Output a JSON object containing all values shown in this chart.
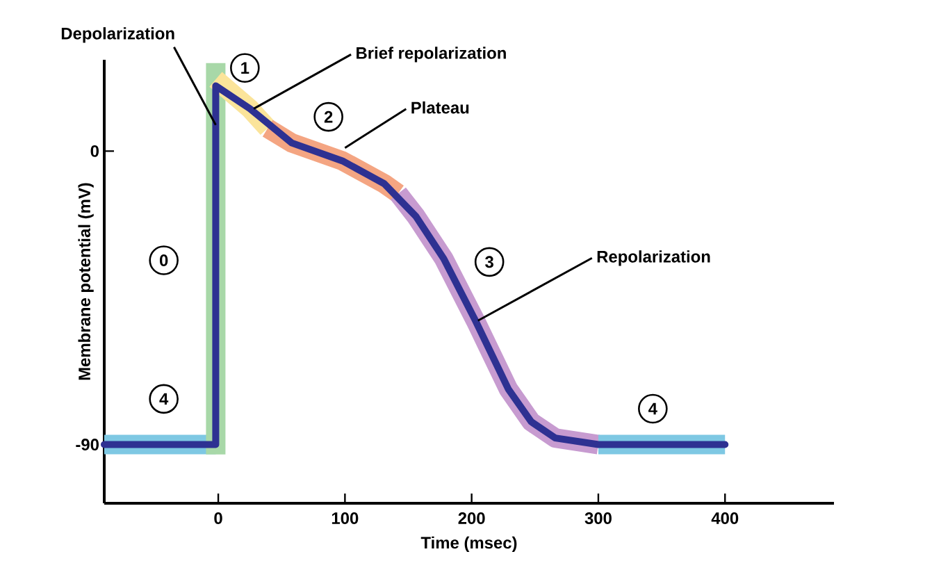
{
  "chart_data": {
    "type": "line",
    "xlabel": "Time (msec)",
    "ylabel": "Membrane potential (mV)",
    "xlim": [
      -90,
      486
    ],
    "ylim": [
      -108,
      28
    ],
    "xticks": [
      0,
      100,
      200,
      300,
      400
    ],
    "yticks": [
      -90,
      0
    ],
    "grid": false,
    "marker": "none",
    "line_style": "solid",
    "series": [
      {
        "color": "#7ec8e3",
        "x": [
          -90,
          -2
        ],
        "values": [
          -90,
          -90
        ]
      },
      {
        "color": "#a8d8a8",
        "x": [
          -2,
          -2
        ],
        "values": [
          -93,
          27
        ]
      },
      {
        "color": "#fbe49a",
        "x": [
          -2,
          25,
          39
        ],
        "values": [
          22,
          13,
          7
        ]
      },
      {
        "color": "#f4a582",
        "x": [
          39,
          58,
          98,
          131,
          142
        ],
        "values": [
          7,
          2.5,
          -3,
          -10,
          -13
        ]
      },
      {
        "color": "#c79bd0",
        "x": [
          142,
          156,
          178,
          203,
          229,
          247,
          266,
          300
        ],
        "values": [
          -13,
          -20,
          -33,
          -52,
          -73,
          -83,
          -88,
          -90
        ]
      },
      {
        "color": "#7ec8e3",
        "x": [
          300,
          400
        ],
        "values": [
          -90,
          -90
        ]
      },
      {
        "color": "#2e3192",
        "x": [
          -90,
          -2,
          -2,
          25,
          58,
          98,
          131,
          156,
          178,
          203,
          229,
          247,
          266,
          300,
          400
        ],
        "values": [
          -90,
          -90,
          20,
          13,
          2.5,
          -3,
          -10,
          -20,
          -33,
          -52,
          -73,
          -83,
          -88,
          -90,
          -90
        ]
      }
    ],
    "annotations": [
      {
        "text": "Depolarization",
        "x": -2,
        "y": 8
      },
      {
        "text": "Brief repolarization",
        "x": 28,
        "y": 13
      },
      {
        "text": "Plateau",
        "x": 100,
        "y": 1
      },
      {
        "text": "Repolarization",
        "x": 205,
        "y": -52
      },
      {
        "text": "0",
        "x": -43,
        "y": -33.5
      },
      {
        "text": "1",
        "x": 21,
        "y": 25.5
      },
      {
        "text": "2",
        "x": 87,
        "y": 10.5
      },
      {
        "text": "3",
        "x": 214,
        "y": -34
      },
      {
        "text": "4",
        "x": -43,
        "y": -76
      },
      {
        "text": "4",
        "x": 343,
        "y": -79
      }
    ]
  }
}
